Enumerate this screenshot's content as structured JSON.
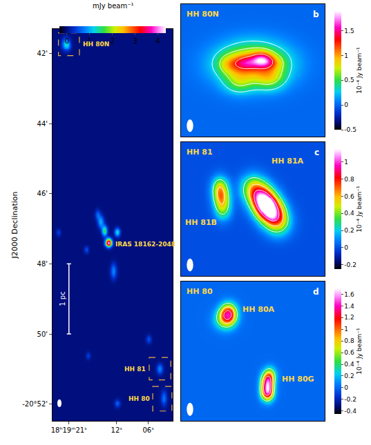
{
  "chart_data": [
    {
      "type": "heatmap",
      "ylabel": "J2000 Declination",
      "xlim": [
        24.1,
        1.4
      ],
      "ylim": [
        52.48,
        41.3
      ],
      "xticks": [
        {
          "value": 21,
          "label": "18ʰ19ᵐ21ˢ"
        },
        {
          "value": 12,
          "label": "12ˢ"
        },
        {
          "value": 6,
          "label": "06ˢ"
        }
      ],
      "yticks": [
        {
          "value": 42,
          "label": "42'"
        },
        {
          "value": 44,
          "label": "44'"
        },
        {
          "value": 46,
          "label": "46'"
        },
        {
          "value": 48,
          "label": "48'"
        },
        {
          "value": 50,
          "label": "50'"
        },
        {
          "value": 52,
          "label": "-20°52'"
        }
      ],
      "colorbar": {
        "title": "mJy beam⁻¹",
        "range": [
          -0.33,
          4.35
        ],
        "ticks": [
          0,
          1,
          2,
          3,
          4
        ]
      },
      "sources": [
        {
          "x": 21.66,
          "y": 41.72,
          "peak": 1.0,
          "sx": 0.5,
          "sy": 0.12
        },
        {
          "x": 21.2,
          "y": 41.76,
          "peak": 0.5,
          "sx": 0.4,
          "sy": 0.1
        },
        {
          "x": 13.53,
          "y": 47.39,
          "peak": 4.3,
          "sx": 0.4,
          "sy": 0.08
        },
        {
          "x": 14.3,
          "y": 47.05,
          "peak": 1.6,
          "sx": 0.35,
          "sy": 0.1
        },
        {
          "x": 15.0,
          "y": 46.8,
          "peak": 1.0,
          "sx": 0.4,
          "sy": 0.12
        },
        {
          "x": 15.6,
          "y": 46.6,
          "peak": 0.6,
          "sx": 0.35,
          "sy": 0.1
        },
        {
          "x": 11.9,
          "y": 47.09,
          "peak": 1.3,
          "sx": 0.35,
          "sy": 0.08
        },
        {
          "x": 12.6,
          "y": 48.2,
          "peak": 0.8,
          "sx": 0.4,
          "sy": 0.15
        },
        {
          "x": 17.7,
          "y": 47.6,
          "peak": 0.5,
          "sx": 0.3,
          "sy": 0.07
        },
        {
          "x": 23.0,
          "y": 47.1,
          "peak": 0.4,
          "sx": 0.3,
          "sy": 0.07
        },
        {
          "x": 17.37,
          "y": 50.61,
          "peak": 0.4,
          "sx": 0.3,
          "sy": 0.07
        },
        {
          "x": 5.95,
          "y": 50.15,
          "peak": 0.5,
          "sx": 0.35,
          "sy": 0.08
        },
        {
          "x": 3.86,
          "y": 51.0,
          "peak": 0.8,
          "sx": 0.4,
          "sy": 0.1
        },
        {
          "x": 3.09,
          "y": 51.83,
          "peak": 0.7,
          "sx": 0.4,
          "sy": 0.15
        },
        {
          "x": 11.88,
          "y": 51.98,
          "peak": 0.6,
          "sx": 0.35,
          "sy": 0.08
        }
      ],
      "annotations": [
        {
          "text": "HH 80N",
          "x": 18.6,
          "y": 41.74,
          "anchor": "left"
        },
        {
          "text": "IRAS 18162-2048",
          "x": 12.5,
          "y": 47.45,
          "anchor": "left"
        },
        {
          "text": "HH 81",
          "x": 6.2,
          "y": 51.0,
          "anchor": "right"
        },
        {
          "text": "HH 80",
          "x": 5.5,
          "y": 51.85,
          "anchor": "right"
        }
      ],
      "boxes": [
        {
          "x": [
            22.98,
            19.02
          ],
          "y": [
            41.41,
            42.06
          ]
        },
        {
          "x": [
            5.84,
            1.77
          ],
          "y": [
            50.67,
            51.31
          ]
        },
        {
          "x": [
            5.18,
            1.55
          ],
          "y": [
            51.5,
            52.2
          ]
        }
      ],
      "scale_bar": {
        "label": "1 pc",
        "x": 21,
        "y": [
          48,
          50
        ]
      }
    },
    {
      "type": "heatmap",
      "title": "HH 80N",
      "label": "b",
      "xlim": [
        0,
        1
      ],
      "ylim": [
        0,
        1
      ],
      "tick_labels": false,
      "colorbar": {
        "title": "10⁻⁴ Jy beam⁻¹",
        "range": [
          -0.5,
          1.9
        ],
        "ticks": [
          -0.5,
          0,
          0.5,
          1,
          1.5
        ]
      },
      "contour_levels": [
        0.3,
        0.6,
        1.3
      ],
      "sources": [
        {
          "x": 0.5,
          "y": 0.55,
          "peak": 1.0,
          "sx": 0.17,
          "sy": 0.11
        },
        {
          "x": 0.56,
          "y": 0.58,
          "peak": 0.9,
          "sx": 0.05,
          "sy": 0.04
        },
        {
          "x": 0.45,
          "y": 0.56,
          "peak": 0.5,
          "sx": 0.05,
          "sy": 0.04
        },
        {
          "x": 0.34,
          "y": 0.55,
          "peak": 0.4,
          "sx": 0.06,
          "sy": 0.05
        },
        {
          "x": 0.64,
          "y": 0.56,
          "peak": 0.3,
          "sx": 0.05,
          "sy": 0.04
        },
        {
          "x": 0.62,
          "y": 0.44,
          "peak": 0.4,
          "sx": 0.07,
          "sy": 0.06
        },
        {
          "x": 0.4,
          "y": 0.41,
          "peak": 0.35,
          "sx": 0.07,
          "sy": 0.06
        }
      ],
      "annotations": []
    },
    {
      "type": "heatmap",
      "title": "HH 81",
      "label": "c",
      "xlim": [
        0,
        1
      ],
      "ylim": [
        0,
        1
      ],
      "tick_labels": false,
      "colorbar": {
        "title": "10⁻⁴ Jy beam⁻¹",
        "range": [
          -0.25,
          1.15
        ],
        "ticks": [
          -0.2,
          0,
          0.2,
          0.4,
          0.6,
          0.8,
          1
        ]
      },
      "contour_levels": [
        0.3,
        0.6,
        0.9
      ],
      "sources": [
        {
          "x": 0.5,
          "y": 0.66,
          "peak": 0.45,
          "sx": 0.06,
          "sy": 0.07
        },
        {
          "x": 0.56,
          "y": 0.58,
          "peak": 0.7,
          "sx": 0.06,
          "sy": 0.07
        },
        {
          "x": 0.6,
          "y": 0.52,
          "peak": 0.75,
          "sx": 0.06,
          "sy": 0.07
        },
        {
          "x": 0.64,
          "y": 0.46,
          "peak": 0.55,
          "sx": 0.06,
          "sy": 0.07
        },
        {
          "x": 0.68,
          "y": 0.4,
          "peak": 0.35,
          "sx": 0.06,
          "sy": 0.07
        },
        {
          "x": 0.27,
          "y": 0.66,
          "peak": 0.45,
          "sx": 0.04,
          "sy": 0.06
        },
        {
          "x": 0.28,
          "y": 0.58,
          "peak": 0.4,
          "sx": 0.04,
          "sy": 0.06
        },
        {
          "x": 0.29,
          "y": 0.5,
          "peak": 0.3,
          "sx": 0.04,
          "sy": 0.06
        }
      ],
      "annotations": [
        {
          "text": "HH 81A",
          "x": 0.62,
          "y": 0.86,
          "anchor": "left"
        },
        {
          "text": "HH 81B",
          "x": 0.02,
          "y": 0.4,
          "anchor": "left"
        }
      ]
    },
    {
      "type": "heatmap",
      "title": "HH 80",
      "label": "d",
      "xlim": [
        0,
        1
      ],
      "ylim": [
        0,
        1
      ],
      "tick_labels": false,
      "colorbar": {
        "title": "10⁻⁴ Jy beam⁻¹",
        "range": [
          -0.45,
          1.7
        ],
        "ticks": [
          -0.4,
          -0.2,
          0,
          0.2,
          0.4,
          0.6,
          0.8,
          1,
          1.2,
          1.4,
          1.6
        ]
      },
      "contour_levels": [
        0.4,
        0.8,
        1.2
      ],
      "sources": [
        {
          "x": 0.33,
          "y": 0.77,
          "peak": 1.1,
          "sx": 0.04,
          "sy": 0.05
        },
        {
          "x": 0.3,
          "y": 0.73,
          "peak": 0.5,
          "sx": 0.05,
          "sy": 0.05
        },
        {
          "x": 0.6,
          "y": 0.27,
          "peak": 1.3,
          "sx": 0.03,
          "sy": 0.05
        },
        {
          "x": 0.6,
          "y": 0.2,
          "peak": 1.0,
          "sx": 0.03,
          "sy": 0.04
        },
        {
          "x": 0.62,
          "y": 0.33,
          "peak": 0.5,
          "sx": 0.03,
          "sy": 0.04
        }
      ],
      "annotations": [
        {
          "text": "HH 80A",
          "x": 0.42,
          "y": 0.8,
          "anchor": "left"
        },
        {
          "text": "HH 80G",
          "x": 0.69,
          "y": 0.3,
          "anchor": "left"
        }
      ]
    }
  ]
}
